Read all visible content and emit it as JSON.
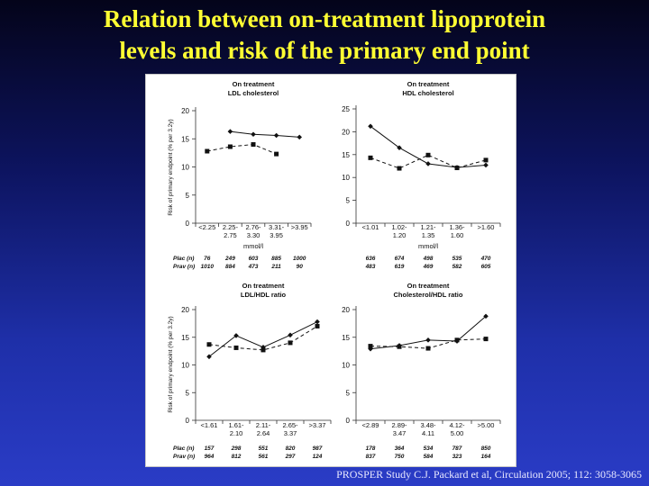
{
  "title": {
    "line1": "Relation between on-treatment lipoprotein",
    "line2": "levels and risk of the primary end point"
  },
  "citation": "PROSPER Study C.J. Packard et al, Circulation 2005; 112: 3058-3065",
  "colors": {
    "title": "#ffff33",
    "background_top": "#04041a",
    "background_bottom": "#2a3cc6"
  },
  "chart_data": [
    {
      "type": "line",
      "title_line1": "On treatment",
      "title_line2": "LDL cholesterol",
      "ylabel": "Risk of primary endpoint (% per 3.2y)",
      "xlabel": "mmol/l",
      "ylim": [
        0,
        20
      ],
      "yticks": [
        0,
        5,
        10,
        15,
        20
      ],
      "categories": [
        [
          "<2.25"
        ],
        [
          "2.25-",
          "2.75"
        ],
        [
          "2.76-",
          "3.30"
        ],
        [
          "3.31-",
          "3.95"
        ],
        [
          ">3.95"
        ]
      ],
      "series": [
        {
          "name": "Plac (n)",
          "style": "solid-diamond",
          "values": [
            null,
            16.3,
            15.8,
            15.6,
            15.3
          ],
          "counts": [
            "76",
            "249",
            "603",
            "885",
            "1000"
          ]
        },
        {
          "name": "Prav (n)",
          "style": "dashed-square",
          "values": [
            12.8,
            13.6,
            14.0,
            12.3,
            null
          ],
          "counts": [
            "1010",
            "884",
            "473",
            "211",
            "90"
          ]
        }
      ]
    },
    {
      "type": "line",
      "title_line1": "On treatment",
      "title_line2": "HDL cholesterol",
      "ylabel": "",
      "xlabel": "mmol/l",
      "ylim": [
        0,
        25
      ],
      "yticks": [
        0,
        5,
        10,
        15,
        20,
        25
      ],
      "categories": [
        [
          "<1.01"
        ],
        [
          "1.02-",
          "1.20"
        ],
        [
          "1.21-",
          "1.35"
        ],
        [
          "1.36-",
          "1.60"
        ],
        [
          ">1.60"
        ]
      ],
      "series": [
        {
          "name": "Plac (n)",
          "style": "solid-diamond",
          "values": [
            21.2,
            16.5,
            13.0,
            12.2,
            12.7
          ],
          "counts": [
            "636",
            "674",
            "498",
            "535",
            "470"
          ]
        },
        {
          "name": "Prav (n)",
          "style": "dashed-square",
          "values": [
            14.3,
            12.0,
            14.9,
            12.1,
            13.8
          ],
          "counts": [
            "483",
            "619",
            "469",
            "582",
            "605"
          ]
        }
      ]
    },
    {
      "type": "line",
      "title_line1": "On treatment",
      "title_line2": "LDL/HDL ratio",
      "ylabel": "Risk of primary endpoint (% per 3.2y)",
      "xlabel": "",
      "ylim": [
        0,
        20
      ],
      "yticks": [
        0,
        5,
        10,
        15,
        20
      ],
      "categories": [
        [
          "<1.61"
        ],
        [
          "1.61-",
          "2.10"
        ],
        [
          "2.11-",
          "2.64"
        ],
        [
          "2.65-",
          "3.37"
        ],
        [
          ">3.37"
        ]
      ],
      "series": [
        {
          "name": "Plac (n)",
          "style": "solid-diamond",
          "values": [
            11.5,
            15.3,
            13.2,
            15.4,
            17.8
          ],
          "counts": [
            "157",
            "298",
            "551",
            "820",
            "987"
          ]
        },
        {
          "name": "Prav (n)",
          "style": "dashed-square",
          "values": [
            13.7,
            13.1,
            12.7,
            14.0,
            17.0
          ],
          "counts": [
            "964",
            "812",
            "561",
            "297",
            "124"
          ]
        }
      ]
    },
    {
      "type": "line",
      "title_line1": "On treatment",
      "title_line2": "Cholesterol/HDL ratio",
      "ylabel": "",
      "xlabel": "",
      "ylim": [
        0,
        20
      ],
      "yticks": [
        0,
        5,
        10,
        15,
        20
      ],
      "categories": [
        [
          "<2.89"
        ],
        [
          "2.89-",
          "3.47"
        ],
        [
          "3.48-",
          "4.11"
        ],
        [
          "4.12-",
          "5.00"
        ],
        [
          ">5.00"
        ]
      ],
      "series": [
        {
          "name": "Plac (n)",
          "style": "solid-diamond",
          "values": [
            12.9,
            13.5,
            14.5,
            14.3,
            18.8
          ],
          "counts": [
            "178",
            "364",
            "534",
            "787",
            "850"
          ]
        },
        {
          "name": "Prav (n)",
          "style": "dashed-square",
          "values": [
            13.4,
            13.3,
            13.0,
            14.5,
            14.7
          ],
          "counts": [
            "837",
            "750",
            "584",
            "323",
            "164"
          ]
        }
      ]
    }
  ]
}
